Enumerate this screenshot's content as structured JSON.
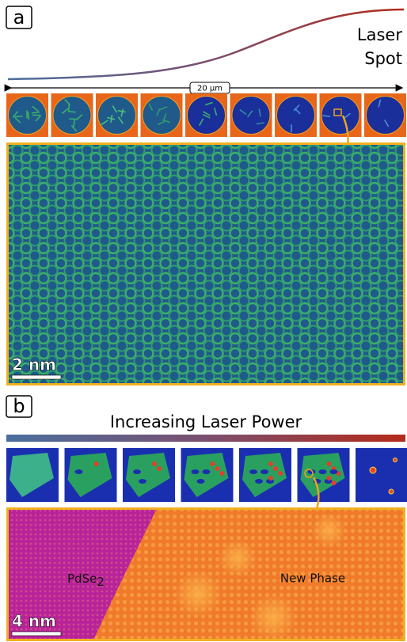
{
  "panel_a": {
    "label": "a",
    "laser_spot": [
      "Laser",
      "Spot"
    ],
    "scale_width": "20 μm",
    "scale_bar": "2 nm"
  },
  "panel_b": {
    "label": "b",
    "title": "Increasing Laser Power",
    "scale_bar": "4 nm",
    "region_left": {
      "text": "PdSe",
      "subscript": "2"
    },
    "region_right": "New Phase"
  }
}
